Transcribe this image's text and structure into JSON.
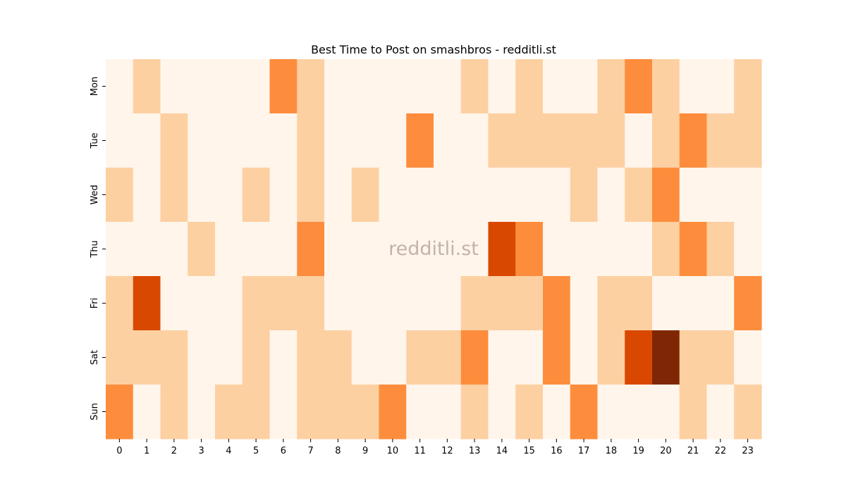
{
  "chart_data": {
    "type": "heatmap",
    "title": "Best Time to Post on smashbros - redditli.st",
    "watermark": "redditli.st",
    "x_categories": [
      "0",
      "1",
      "2",
      "3",
      "4",
      "5",
      "6",
      "7",
      "8",
      "9",
      "10",
      "11",
      "12",
      "13",
      "14",
      "15",
      "16",
      "17",
      "18",
      "19",
      "20",
      "21",
      "22",
      "23"
    ],
    "y_categories": [
      "Mon",
      "Tue",
      "Wed",
      "Thu",
      "Fri",
      "Sat",
      "Sun"
    ],
    "values": [
      [
        0,
        1,
        0,
        0,
        0,
        0,
        2,
        1,
        0,
        0,
        0,
        0,
        0,
        1,
        0,
        1,
        0,
        0,
        1,
        2,
        1,
        0,
        0,
        1
      ],
      [
        0,
        0,
        1,
        0,
        0,
        0,
        0,
        1,
        0,
        0,
        0,
        2,
        0,
        0,
        1,
        1,
        1,
        1,
        1,
        0,
        1,
        2,
        1,
        1
      ],
      [
        1,
        0,
        1,
        0,
        0,
        1,
        0,
        1,
        0,
        1,
        0,
        0,
        0,
        0,
        0,
        0,
        0,
        1,
        0,
        1,
        2,
        0,
        0,
        0
      ],
      [
        0,
        0,
        0,
        1,
        0,
        0,
        0,
        2,
        0,
        0,
        0,
        0,
        0,
        0,
        3,
        2,
        0,
        0,
        0,
        0,
        1,
        2,
        1,
        0
      ],
      [
        1,
        3,
        0,
        0,
        0,
        1,
        1,
        1,
        0,
        0,
        0,
        0,
        0,
        1,
        1,
        1,
        2,
        0,
        1,
        1,
        0,
        0,
        0,
        2
      ],
      [
        1,
        1,
        1,
        0,
        0,
        1,
        0,
        1,
        1,
        0,
        0,
        1,
        1,
        2,
        0,
        0,
        2,
        0,
        1,
        3,
        4,
        1,
        1,
        0
      ],
      [
        2,
        0,
        1,
        0,
        1,
        1,
        0,
        1,
        1,
        1,
        2,
        0,
        0,
        1,
        0,
        1,
        0,
        2,
        0,
        0,
        0,
        1,
        0,
        1
      ]
    ],
    "colormap": [
      "#fff5eb",
      "#fdd0a2",
      "#fd8d3c",
      "#d94801",
      "#7f2704"
    ],
    "grid": false,
    "legend": "none"
  }
}
